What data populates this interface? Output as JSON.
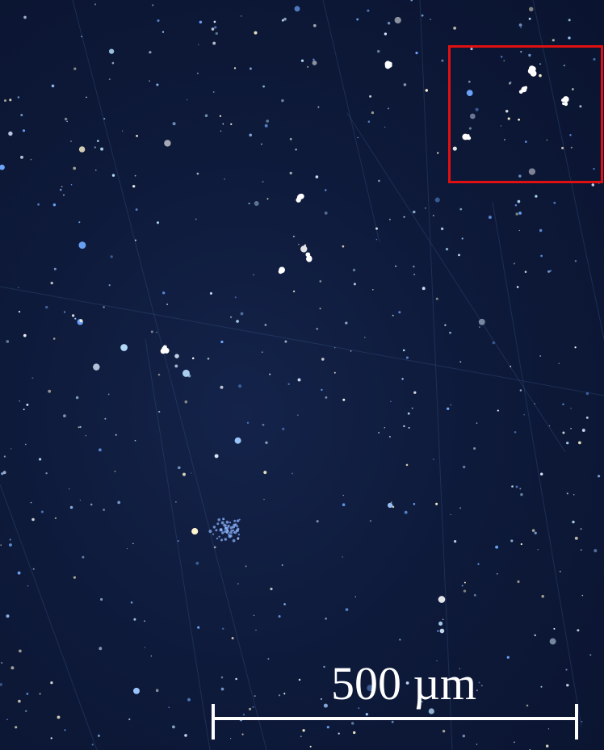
{
  "image": {
    "description_type": "dark-field optical micrograph",
    "background_color": "#0e1a3a",
    "particle_color": "#cfe6ff",
    "highlight_box_color": "#e01010"
  },
  "scale_bar": {
    "label": "500 µm",
    "color": "#ffffff"
  }
}
